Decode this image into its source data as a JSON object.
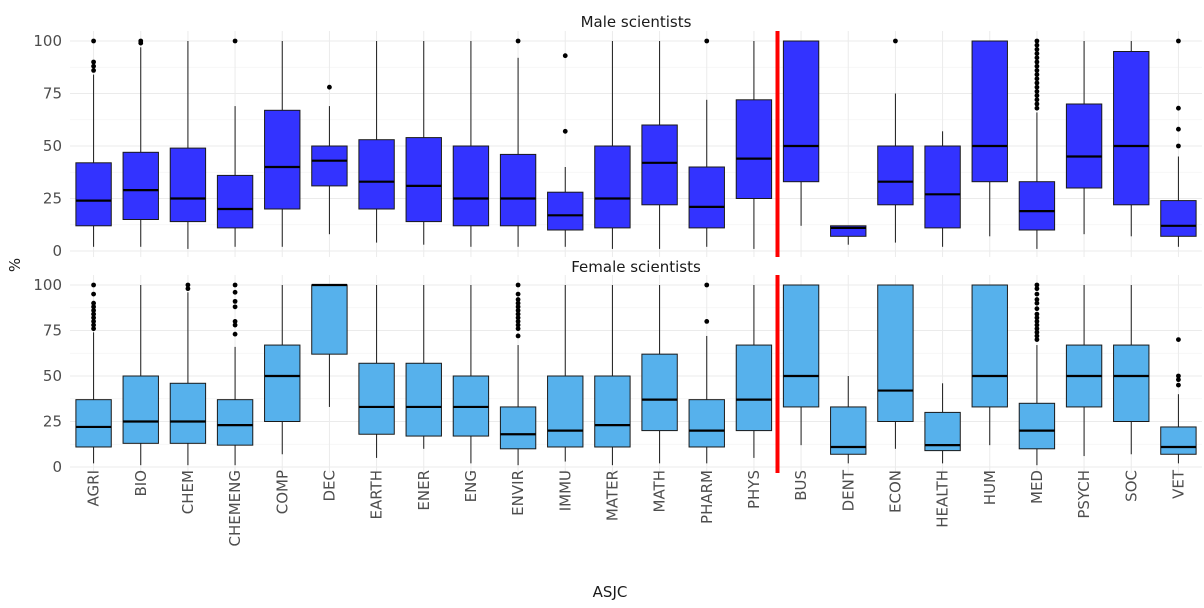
{
  "chart_data": {
    "type": "boxplot",
    "xlabel": "ASJC",
    "ylabel": "%",
    "ylim": [
      0,
      100
    ],
    "y_ticks": [
      0,
      25,
      50,
      75,
      100
    ],
    "categories": [
      "AGRI",
      "BIO",
      "CHEM",
      "CHEMENG",
      "COMP",
      "DEC",
      "EARTH",
      "ENER",
      "ENG",
      "ENVIR",
      "IMMU",
      "MATER",
      "MATH",
      "PHARM",
      "PHYS",
      "BUS",
      "DENT",
      "ECON",
      "HEALTH",
      "HUM",
      "MED",
      "PSYCH",
      "SOC",
      "VET"
    ],
    "divider_after_category": "PHYS",
    "divider_color": "#ff0000",
    "grid": true,
    "panels": [
      {
        "title": "Male scientists",
        "color": "#3333ff",
        "boxes": [
          {
            "category": "AGRI",
            "min": 2,
            "q1": 12,
            "median": 24,
            "q3": 42,
            "max": 84,
            "outliers": [
              86,
              88,
              90,
              100
            ]
          },
          {
            "category": "BIO",
            "min": 2,
            "q1": 15,
            "median": 29,
            "q3": 47,
            "max": 97,
            "outliers": [
              99,
              100
            ]
          },
          {
            "category": "CHEM",
            "min": 1,
            "q1": 14,
            "median": 25,
            "q3": 49,
            "max": 100,
            "outliers": []
          },
          {
            "category": "CHEMENG",
            "min": 2,
            "q1": 11,
            "median": 20,
            "q3": 36,
            "max": 69,
            "outliers": [
              100
            ]
          },
          {
            "category": "COMP",
            "min": 2,
            "q1": 20,
            "median": 40,
            "q3": 67,
            "max": 100,
            "outliers": []
          },
          {
            "category": "DEC",
            "min": 8,
            "q1": 31,
            "median": 43,
            "q3": 50,
            "max": 69,
            "outliers": [
              78
            ]
          },
          {
            "category": "EARTH",
            "min": 4,
            "q1": 20,
            "median": 33,
            "q3": 53,
            "max": 100,
            "outliers": []
          },
          {
            "category": "ENER",
            "min": 3,
            "q1": 14,
            "median": 31,
            "q3": 54,
            "max": 100,
            "outliers": []
          },
          {
            "category": "ENG",
            "min": 2,
            "q1": 12,
            "median": 25,
            "q3": 50,
            "max": 100,
            "outliers": []
          },
          {
            "category": "ENVIR",
            "min": 2,
            "q1": 12,
            "median": 25,
            "q3": 46,
            "max": 92,
            "outliers": [
              100
            ]
          },
          {
            "category": "IMMU",
            "min": 2,
            "q1": 10,
            "median": 17,
            "q3": 28,
            "max": 40,
            "outliers": [
              57,
              93
            ]
          },
          {
            "category": "MATER",
            "min": 1,
            "q1": 11,
            "median": 25,
            "q3": 50,
            "max": 100,
            "outliers": []
          },
          {
            "category": "MATH",
            "min": 1,
            "q1": 22,
            "median": 42,
            "q3": 60,
            "max": 100,
            "outliers": []
          },
          {
            "category": "PHARM",
            "min": 2,
            "q1": 11,
            "median": 21,
            "q3": 40,
            "max": 72,
            "outliers": [
              100
            ]
          },
          {
            "category": "PHYS",
            "min": 1,
            "q1": 25,
            "median": 44,
            "q3": 72,
            "max": 100,
            "outliers": []
          },
          {
            "category": "BUS",
            "min": 12,
            "q1": 33,
            "median": 50,
            "q3": 100,
            "max": 100,
            "outliers": []
          },
          {
            "category": "DENT",
            "min": 3,
            "q1": 7,
            "median": 11,
            "q3": 12,
            "max": 12,
            "outliers": []
          },
          {
            "category": "ECON",
            "min": 4,
            "q1": 22,
            "median": 33,
            "q3": 50,
            "max": 75,
            "outliers": [
              100
            ]
          },
          {
            "category": "HEALTH",
            "min": 2,
            "q1": 11,
            "median": 27,
            "q3": 50,
            "max": 57,
            "outliers": []
          },
          {
            "category": "HUM",
            "min": 7,
            "q1": 33,
            "median": 50,
            "q3": 100,
            "max": 100,
            "outliers": []
          },
          {
            "category": "MED",
            "min": 1,
            "q1": 10,
            "median": 19,
            "q3": 33,
            "max": 66,
            "outliers": [
              68,
              70,
              72,
              74,
              76,
              78,
              80,
              82,
              84,
              86,
              88,
              90,
              92,
              94,
              96,
              98,
              100
            ]
          },
          {
            "category": "PSYCH",
            "min": 8,
            "q1": 30,
            "median": 45,
            "q3": 70,
            "max": 100,
            "outliers": []
          },
          {
            "category": "SOC",
            "min": 7,
            "q1": 22,
            "median": 50,
            "q3": 95,
            "max": 100,
            "outliers": []
          },
          {
            "category": "VET",
            "min": 2,
            "q1": 7,
            "median": 12,
            "q3": 24,
            "max": 45,
            "outliers": [
              50,
              58,
              68,
              100
            ]
          }
        ]
      },
      {
        "title": "Female scientists",
        "color": "#56b1ec",
        "boxes": [
          {
            "category": "AGRI",
            "min": 2,
            "q1": 11,
            "median": 22,
            "q3": 37,
            "max": 74,
            "outliers": [
              76,
              78,
              80,
              82,
              84,
              86,
              88,
              90,
              95,
              100
            ]
          },
          {
            "category": "BIO",
            "min": 1,
            "q1": 13,
            "median": 25,
            "q3": 50,
            "max": 100,
            "outliers": []
          },
          {
            "category": "CHEM",
            "min": 1,
            "q1": 13,
            "median": 25,
            "q3": 46,
            "max": 96,
            "outliers": [
              98,
              100
            ]
          },
          {
            "category": "CHEMENG",
            "min": 1,
            "q1": 12,
            "median": 23,
            "q3": 37,
            "max": 66,
            "outliers": [
              73,
              78,
              80,
              88,
              91,
              96,
              100
            ]
          },
          {
            "category": "COMP",
            "min": 7,
            "q1": 25,
            "median": 50,
            "q3": 67,
            "max": 100,
            "outliers": []
          },
          {
            "category": "DEC",
            "min": 33,
            "q1": 62,
            "median": 100,
            "q3": 100,
            "max": 100,
            "outliers": []
          },
          {
            "category": "EARTH",
            "min": 5,
            "q1": 18,
            "median": 33,
            "q3": 57,
            "max": 100,
            "outliers": []
          },
          {
            "category": "ENER",
            "min": 10,
            "q1": 17,
            "median": 33,
            "q3": 57,
            "max": 100,
            "outliers": []
          },
          {
            "category": "ENG",
            "min": 2,
            "q1": 17,
            "median": 33,
            "q3": 50,
            "max": 100,
            "outliers": []
          },
          {
            "category": "ENVIR",
            "min": 1,
            "q1": 10,
            "median": 18,
            "q3": 33,
            "max": 67,
            "outliers": [
              72,
              76,
              78,
              80,
              82,
              84,
              86,
              88,
              90,
              92,
              95,
              100
            ]
          },
          {
            "category": "IMMU",
            "min": 3,
            "q1": 11,
            "median": 20,
            "q3": 50,
            "max": 100,
            "outliers": []
          },
          {
            "category": "MATER",
            "min": 1,
            "q1": 11,
            "median": 23,
            "q3": 50,
            "max": 100,
            "outliers": []
          },
          {
            "category": "MATH",
            "min": 2,
            "q1": 20,
            "median": 37,
            "q3": 62,
            "max": 100,
            "outliers": []
          },
          {
            "category": "PHARM",
            "min": 2,
            "q1": 11,
            "median": 20,
            "q3": 37,
            "max": 72,
            "outliers": [
              80,
              100
            ]
          },
          {
            "category": "PHYS",
            "min": 5,
            "q1": 20,
            "median": 37,
            "q3": 67,
            "max": 100,
            "outliers": []
          },
          {
            "category": "BUS",
            "min": 12,
            "q1": 33,
            "median": 50,
            "q3": 100,
            "max": 100,
            "outliers": []
          },
          {
            "category": "DENT",
            "min": 2,
            "q1": 7,
            "median": 11,
            "q3": 33,
            "max": 50,
            "outliers": []
          },
          {
            "category": "ECON",
            "min": 10,
            "q1": 25,
            "median": 42,
            "q3": 100,
            "max": 100,
            "outliers": []
          },
          {
            "category": "HEALTH",
            "min": 2,
            "q1": 9,
            "median": 12,
            "q3": 30,
            "max": 46,
            "outliers": []
          },
          {
            "category": "HUM",
            "min": 12,
            "q1": 33,
            "median": 50,
            "q3": 100,
            "max": 100,
            "outliers": []
          },
          {
            "category": "MED",
            "min": 1,
            "q1": 10,
            "median": 20,
            "q3": 35,
            "max": 67,
            "outliers": [
              70,
              72,
              74,
              76,
              78,
              80,
              82,
              84,
              87,
              90,
              92,
              95,
              98,
              100
            ]
          },
          {
            "category": "PSYCH",
            "min": 6,
            "q1": 33,
            "median": 50,
            "q3": 67,
            "max": 100,
            "outliers": []
          },
          {
            "category": "SOC",
            "min": 7,
            "q1": 25,
            "median": 50,
            "q3": 67,
            "max": 100,
            "outliers": []
          },
          {
            "category": "VET",
            "min": 2,
            "q1": 7,
            "median": 11,
            "q3": 22,
            "max": 40,
            "outliers": [
              45,
              48,
              50,
              70
            ]
          }
        ]
      }
    ]
  }
}
